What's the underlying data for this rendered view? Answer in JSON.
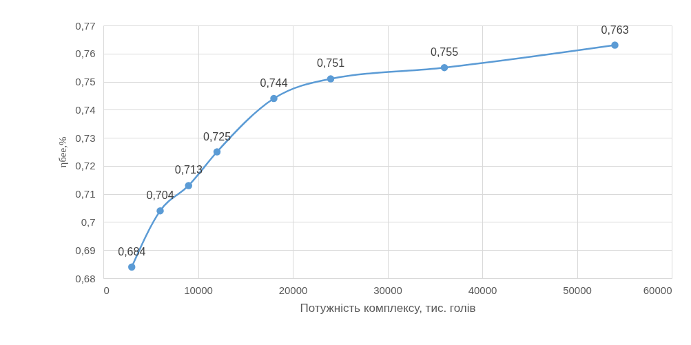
{
  "chart_data": {
    "type": "line",
    "xlabel": "Потужність комплексу, тис. голів",
    "ylabel": "ηбее,%",
    "x": [
      3000,
      6000,
      9000,
      12000,
      18000,
      24000,
      36000,
      54000
    ],
    "series": [
      {
        "color": "#5b9bd5",
        "values": [
          0.684,
          0.704,
          0.713,
          0.725,
          0.744,
          0.751,
          0.755,
          0.763
        ],
        "value_labels": [
          "0,684",
          "0,704",
          "0,713",
          "0,725",
          "0,744",
          "0,751",
          "0,755",
          "0,763"
        ]
      }
    ],
    "xlim": [
      0,
      60000
    ],
    "xticks": [
      0,
      10000,
      20000,
      30000,
      40000,
      50000,
      60000
    ],
    "ylim": [
      0.68,
      0.77
    ],
    "yticks": [
      {
        "value": 0.68,
        "label": "0,68"
      },
      {
        "value": 0.69,
        "label": "0,69"
      },
      {
        "value": 0.7,
        "label": "0,7"
      },
      {
        "value": 0.71,
        "label": "0,71"
      },
      {
        "value": 0.72,
        "label": "0,72"
      },
      {
        "value": 0.73,
        "label": "0,73"
      },
      {
        "value": 0.74,
        "label": "0,74"
      },
      {
        "value": 0.75,
        "label": "0,75"
      },
      {
        "value": 0.76,
        "label": "0,76"
      },
      {
        "value": 0.77,
        "label": "0,77"
      }
    ],
    "grid": true,
    "marker": "circle",
    "line_style": "solid"
  }
}
